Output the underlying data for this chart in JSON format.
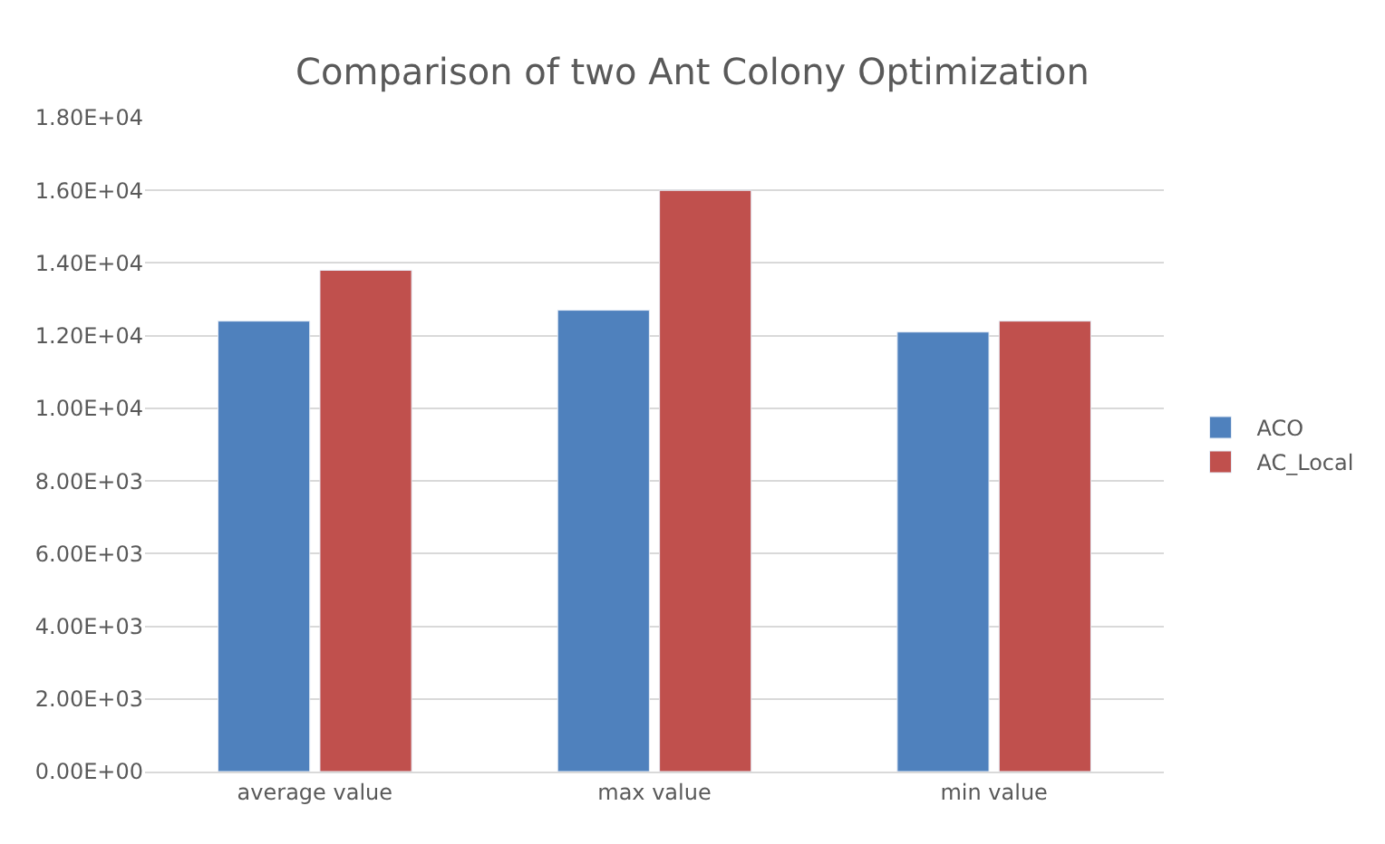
{
  "chart_data": {
    "type": "bar",
    "title": "Comparison of two Ant Colony Optimization",
    "categories": [
      "average value",
      "max value",
      "min value"
    ],
    "series": [
      {
        "name": "ACO",
        "color": "#4f81bd",
        "values": [
          12400,
          12700,
          12100
        ]
      },
      {
        "name": "AC_Local",
        "color": "#c0504d",
        "values": [
          13800,
          16000,
          12400
        ]
      }
    ],
    "ylim": [
      0,
      18000
    ],
    "yticks": [
      {
        "value": 0,
        "label": "0.00E+00"
      },
      {
        "value": 2000,
        "label": "2.00E+03"
      },
      {
        "value": 4000,
        "label": "4.00E+03"
      },
      {
        "value": 6000,
        "label": "6.00E+03"
      },
      {
        "value": 8000,
        "label": "8.00E+03"
      },
      {
        "value": 10000,
        "label": "1.00E+04"
      },
      {
        "value": 12000,
        "label": "1.20E+04"
      },
      {
        "value": 14000,
        "label": "1.40E+04"
      },
      {
        "value": 16000,
        "label": "1.60E+04"
      },
      {
        "value": 18000,
        "label": "1.80E+04"
      }
    ],
    "grid": "y",
    "legend": "right"
  }
}
